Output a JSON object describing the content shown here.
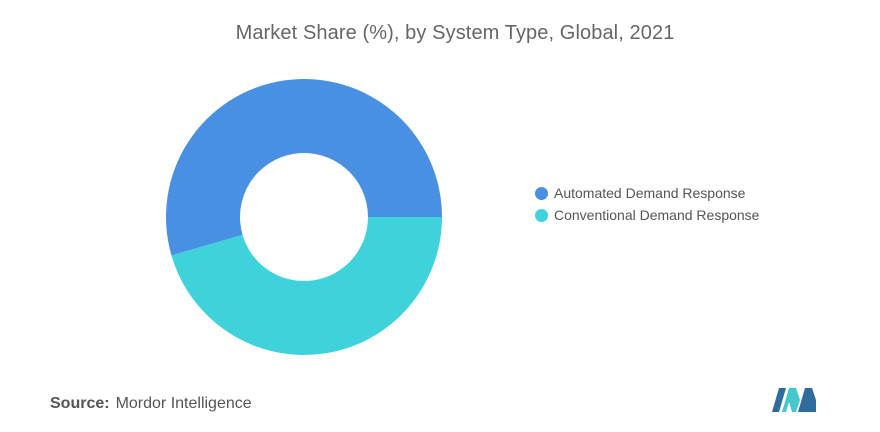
{
  "chart_data": {
    "type": "pie",
    "variant": "donut",
    "title": "Market Share (%), by System Type, Global, 2021",
    "categories": [
      "Automated Demand Response",
      "Conventional Demand Response"
    ],
    "values": [
      54.5,
      45.5
    ],
    "colors": [
      "#4A90E2",
      "#40D2DA"
    ],
    "legend_position": "right"
  },
  "source": {
    "label": "Source:",
    "text": "Mordor Intelligence"
  },
  "logo": {
    "colors": [
      "#2F6C9E",
      "#45C7CC"
    ]
  }
}
